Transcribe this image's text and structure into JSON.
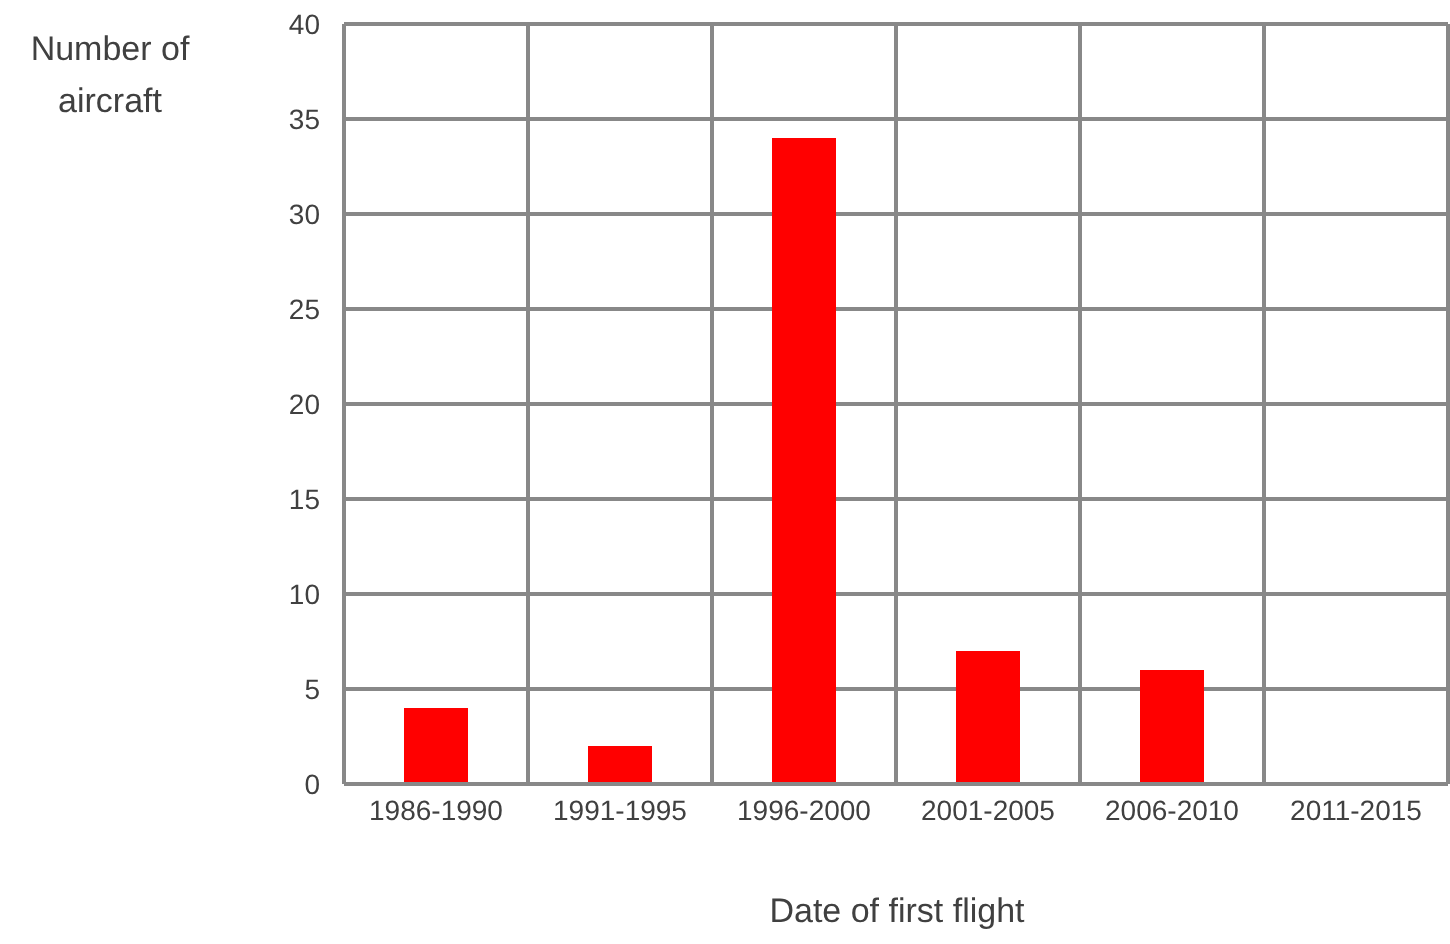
{
  "chart_data": {
    "type": "bar",
    "xlabel": "Date of first flight",
    "ylabel": "Number of aircraft",
    "categories": [
      "1986-1990",
      "1991-1995",
      "1996-2000",
      "2001-2005",
      "2006-2010",
      "2011-2015"
    ],
    "values": [
      4,
      2,
      34,
      7,
      6,
      0
    ],
    "color": "#ff0000",
    "ylim": [
      0,
      40
    ],
    "yticks": [
      0,
      5,
      10,
      15,
      20,
      25,
      30,
      35,
      40
    ],
    "grid": true
  }
}
